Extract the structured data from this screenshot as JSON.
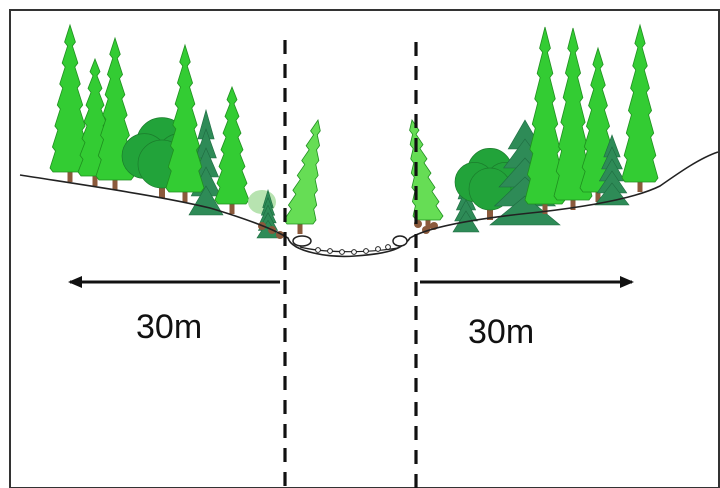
{
  "left_distance_label": "30m",
  "right_distance_label": "30m",
  "colors": {
    "background": "#ffffff",
    "frame": "#333333",
    "ground_line": "#222222",
    "buffer_boundary": "#111111",
    "conifer_bright": "#33cc33",
    "conifer_light": "#66dd55",
    "broadleaf": "#22a33a",
    "spruce": "#2e8b57",
    "pale_shrub": "#b7e3b0",
    "trunk": "#8b5a3c",
    "stream_stones": "#ffffff"
  },
  "icons": {
    "left_arrow": "left-arrow-icon",
    "right_arrow": "right-arrow-icon",
    "stream": "stream-stones-icon"
  }
}
